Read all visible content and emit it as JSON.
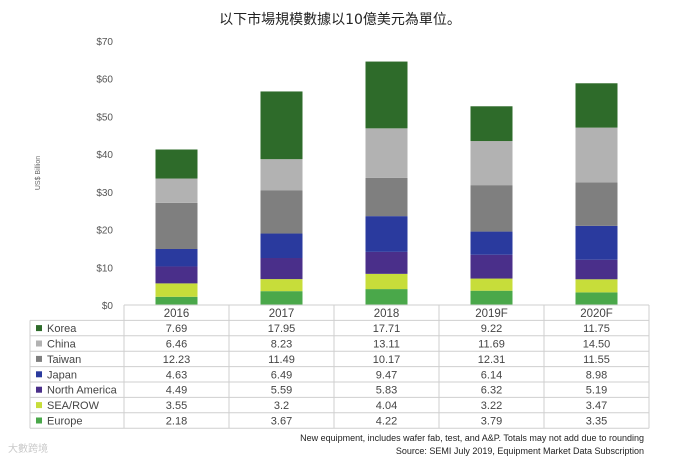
{
  "heading": "以下市場規模數據以10億美元為單位。",
  "chart_data": {
    "type": "bar",
    "stacked": true,
    "categories": [
      "2016",
      "2017",
      "2018",
      "2019F",
      "2020F"
    ],
    "ylabel": "US$ Billion",
    "ylim": [
      0,
      70
    ],
    "yticks": [
      "$0",
      "$10",
      "$20",
      "$30",
      "$40",
      "$50",
      "$60",
      "$70"
    ],
    "grid": false,
    "legend": "left of data table",
    "series": [
      {
        "name": "Korea",
        "color": "#2e6b2a",
        "values": [
          7.69,
          17.95,
          17.71,
          9.22,
          11.75
        ]
      },
      {
        "name": "China",
        "color": "#b2b2b2",
        "values": [
          6.46,
          8.23,
          13.11,
          11.69,
          14.5
        ]
      },
      {
        "name": "Taiwan",
        "color": "#7f7f7f",
        "values": [
          12.23,
          11.49,
          10.17,
          12.31,
          11.55
        ]
      },
      {
        "name": "Japan",
        "color": "#2a3a9e",
        "values": [
          4.63,
          6.49,
          9.47,
          6.14,
          8.98
        ]
      },
      {
        "name": "North America",
        "color": "#4a2f8a",
        "values": [
          4.49,
          5.59,
          5.83,
          6.32,
          5.19
        ]
      },
      {
        "name": "SEA/ROW",
        "color": "#c7dd3a",
        "values": [
          3.55,
          3.2,
          4.04,
          3.22,
          3.47
        ]
      },
      {
        "name": "Europe",
        "color": "#4aa84a",
        "values": [
          2.18,
          3.67,
          4.22,
          3.79,
          3.35
        ]
      }
    ],
    "table_values": [
      [
        "7.69",
        "17.95",
        "17.71",
        "9.22",
        "11.75"
      ],
      [
        "6.46",
        "8.23",
        "13.11",
        "11.69",
        "14.50"
      ],
      [
        "12.23",
        "11.49",
        "10.17",
        "12.31",
        "11.55"
      ],
      [
        "4.63",
        "6.49",
        "9.47",
        "6.14",
        "8.98"
      ],
      [
        "4.49",
        "5.59",
        "5.83",
        "6.32",
        "5.19"
      ],
      [
        "3.55",
        "3.2",
        "4.04",
        "3.22",
        "3.47"
      ],
      [
        "2.18",
        "3.67",
        "4.22",
        "3.79",
        "3.35"
      ]
    ]
  },
  "notes": {
    "line1": "New equipment, includes wafer fab, test, and A&P. Totals may not add due to rounding",
    "line2": "Source: SEMI July 2019, Equipment Market Data Subscription"
  },
  "watermark": "大數跨境"
}
